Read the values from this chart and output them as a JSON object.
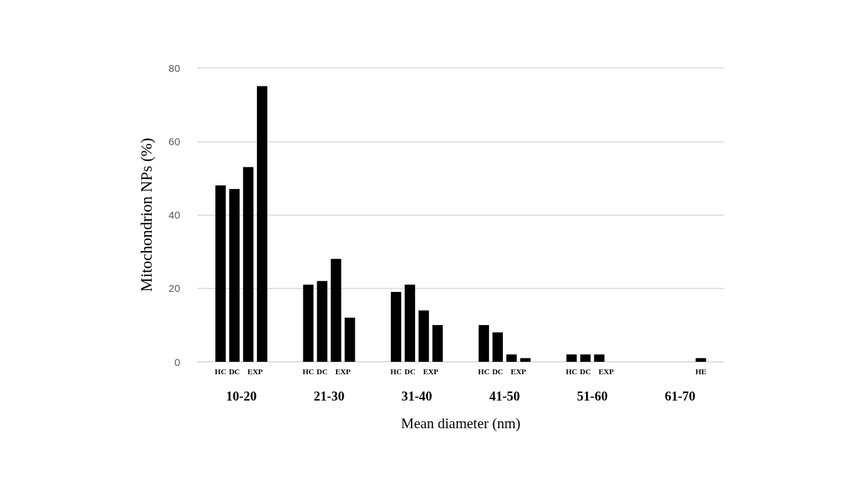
{
  "chart_data": {
    "type": "bar",
    "xlabel": "Mean diameter (nm)",
    "ylabel": "Mitochondrion NPs (%)",
    "categories": [
      "10-20",
      "21-30",
      "31-40",
      "41-50",
      "51-60",
      "61-70"
    ],
    "series": [
      {
        "name": "HC",
        "color": "#000000",
        "values": [
          48,
          21,
          19,
          10,
          2,
          null
        ]
      },
      {
        "name": "DC",
        "color": "#000000",
        "values": [
          47,
          22,
          21,
          8,
          2,
          null
        ]
      },
      {
        "name": "EXP",
        "color": "#000000",
        "values": [
          53,
          28,
          14,
          2,
          2,
          null
        ]
      },
      {
        "color": "#000000",
        "values": [
          75,
          12,
          10,
          1,
          null,
          1
        ]
      }
    ],
    "annotations": [
      "HE"
    ],
    "ylim": [
      0,
      80
    ],
    "yticks": [
      0,
      20,
      40,
      60,
      80
    ],
    "grid": "y",
    "legend": false
  }
}
